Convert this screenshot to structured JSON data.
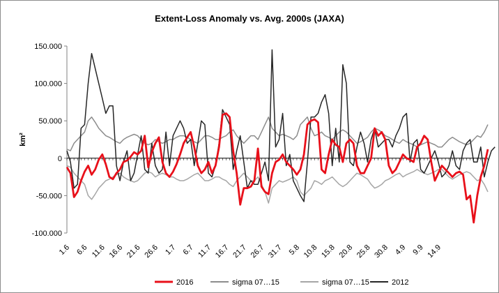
{
  "chart_data": {
    "type": "line",
    "title": "Extent-Loss Anomaly vs. Avg. 2000s (JAXA)",
    "ylabel": "km²",
    "xlabel": "",
    "ylim": [
      -100000,
      150000
    ],
    "y_ticks": [
      150000,
      100000,
      50000,
      0,
      -50000,
      -100000
    ],
    "y_tick_labels": [
      "150.000",
      "100.000",
      "50.000",
      "0",
      "-50.000",
      "-100.000"
    ],
    "x_ticks": [
      {
        "index": 0,
        "label": "1.6"
      },
      {
        "index": 5,
        "label": "6.6"
      },
      {
        "index": 10,
        "label": "11.6"
      },
      {
        "index": 15,
        "label": "16.6"
      },
      {
        "index": 20,
        "label": "21.6"
      },
      {
        "index": 25,
        "label": "26.6"
      },
      {
        "index": 30,
        "label": "1.7"
      },
      {
        "index": 35,
        "label": "6.7"
      },
      {
        "index": 40,
        "label": "11.7"
      },
      {
        "index": 45,
        "label": "16.7"
      },
      {
        "index": 50,
        "label": "21.7"
      },
      {
        "index": 55,
        "label": "26.7"
      },
      {
        "index": 60,
        "label": "31.7"
      },
      {
        "index": 65,
        "label": "5.8"
      },
      {
        "index": 70,
        "label": "10.8"
      },
      {
        "index": 75,
        "label": "15.8"
      },
      {
        "index": 80,
        "label": "20.8"
      },
      {
        "index": 85,
        "label": "25.8"
      },
      {
        "index": 90,
        "label": "30.8"
      },
      {
        "index": 95,
        "label": "4.9"
      },
      {
        "index": 100,
        "label": "9.9"
      },
      {
        "index": 105,
        "label": "14.9"
      }
    ],
    "grid": false,
    "legend_position": "bottom",
    "series": [
      {
        "name": "2016",
        "color": "#e8101a",
        "values": [
          -12000,
          -20000,
          -52000,
          -45000,
          -30000,
          -18000,
          -10000,
          -22000,
          -15000,
          -2000,
          5000,
          -8000,
          -25000,
          -28000,
          -20000,
          -15000,
          -5000,
          -3000,
          2000,
          8000,
          5000,
          10000,
          30000,
          -12000,
          8000,
          20000,
          28000,
          -5000,
          -20000,
          -25000,
          -18000,
          -8000,
          5000,
          20000,
          28000,
          35000,
          15000,
          -10000,
          -20000,
          -15000,
          -5000,
          -20000,
          -10000,
          15000,
          58000,
          60000,
          55000,
          10000,
          -20000,
          -62000,
          -40000,
          -40000,
          -38000,
          -30000,
          13000,
          -38000,
          -45000,
          -48000,
          -20000,
          -5000,
          -2000,
          5000,
          -5000,
          -10000,
          -15000,
          -22000,
          -15000,
          5000,
          45000,
          50000,
          52000,
          48000,
          -15000,
          -20000,
          5000,
          25000,
          18000,
          15000,
          -5000,
          20000,
          25000,
          20000,
          -10000,
          -20000,
          -20000,
          -10000,
          0,
          40000,
          30000,
          35000,
          25000,
          -10000,
          -20000,
          -15000,
          -5000,
          5000,
          0,
          -2000,
          -5000,
          15000,
          20000,
          30000,
          25000,
          -5000,
          -30000,
          -20000,
          -10000,
          -15000,
          -20000,
          -25000,
          -20000,
          -18000,
          -22000,
          -55000,
          -50000,
          -86000,
          -50000,
          -25000,
          -10000,
          12000
        ]
      },
      {
        "name": "sigma 07…15",
        "color": "#8c8c8c",
        "values": [
          12000,
          10000,
          20000,
          25000,
          30000,
          35000,
          50000,
          55000,
          48000,
          40000,
          35000,
          30000,
          28000,
          25000,
          22000,
          20000,
          25000,
          28000,
          30000,
          32000,
          30000,
          25000,
          20000,
          18000,
          20000,
          25000,
          22000,
          20000,
          22000,
          25000,
          25000,
          28000,
          30000,
          30000,
          28000,
          25000,
          22000,
          20000,
          25000,
          30000,
          30000,
          28000,
          25000,
          25000,
          28000,
          30000,
          35000,
          38000,
          30000,
          25000,
          20000,
          25000,
          30000,
          30000,
          25000,
          35000,
          45000,
          55000,
          40000,
          35000,
          30000,
          32000,
          30000,
          28000,
          25000,
          30000,
          45000,
          50000,
          55000,
          40000,
          30000,
          32000,
          35000,
          30000,
          28000,
          25000,
          30000,
          35000,
          38000,
          35000,
          30000,
          25000,
          20000,
          22000,
          25000,
          28000,
          35000,
          40000,
          38000,
          35000,
          30000,
          28000,
          25000,
          22000,
          20000,
          25000,
          22000,
          20000,
          18000,
          15000,
          18000,
          20000,
          22000,
          20000,
          18000,
          15000,
          15000,
          20000,
          25000,
          28000,
          25000,
          22000,
          20000,
          18000,
          20000,
          25000,
          30000,
          28000,
          35000,
          45000
        ]
      },
      {
        "name": "sigma 07…15",
        "color": "#a6a6a6",
        "values": [
          -10000,
          -12000,
          -20000,
          -25000,
          -30000,
          -35000,
          -50000,
          -55000,
          -48000,
          -40000,
          -35000,
          -30000,
          -28000,
          -25000,
          -22000,
          -20000,
          -25000,
          -28000,
          -30000,
          -32000,
          -30000,
          -25000,
          -20000,
          -18000,
          -20000,
          -25000,
          -22000,
          -20000,
          -22000,
          -25000,
          -25000,
          -28000,
          -30000,
          -30000,
          -28000,
          -25000,
          -22000,
          -20000,
          -25000,
          -30000,
          -30000,
          -28000,
          -25000,
          -25000,
          -28000,
          -30000,
          -35000,
          -38000,
          -30000,
          -25000,
          -20000,
          -25000,
          -30000,
          -30000,
          -25000,
          -35000,
          -45000,
          -60000,
          -40000,
          -35000,
          -30000,
          -32000,
          -30000,
          -28000,
          -25000,
          -30000,
          -45000,
          -50000,
          -45000,
          -40000,
          -30000,
          -32000,
          -35000,
          -30000,
          -28000,
          -25000,
          -30000,
          -35000,
          -38000,
          -35000,
          -30000,
          -25000,
          -20000,
          -22000,
          -25000,
          -28000,
          -35000,
          -40000,
          -38000,
          -35000,
          -30000,
          -28000,
          -25000,
          -22000,
          -20000,
          -25000,
          -22000,
          -20000,
          -18000,
          -15000,
          -18000,
          -20000,
          -22000,
          -20000,
          -18000,
          -15000,
          -15000,
          -20000,
          -25000,
          -28000,
          -25000,
          -22000,
          -20000,
          -18000,
          -20000,
          -25000,
          -30000,
          -28000,
          -35000,
          -45000
        ]
      },
      {
        "name": "2012",
        "color": "#262626",
        "values": [
          10000,
          -5000,
          -40000,
          -35000,
          40000,
          45000,
          100000,
          140000,
          120000,
          100000,
          80000,
          60000,
          70000,
          70000,
          -10000,
          -30000,
          -5000,
          10000,
          -30000,
          -20000,
          5000,
          30000,
          -15000,
          -20000,
          20000,
          -10000,
          -20000,
          -15000,
          35000,
          -10000,
          30000,
          40000,
          50000,
          40000,
          20000,
          25000,
          -10000,
          20000,
          50000,
          45000,
          -20000,
          -25000,
          -10000,
          20000,
          65000,
          55000,
          45000,
          -15000,
          10000,
          30000,
          -5000,
          -40000,
          -30000,
          -35000,
          -35000,
          -20000,
          -5000,
          -30000,
          145000,
          15000,
          25000,
          60000,
          -10000,
          5000,
          -30000,
          -40000,
          -50000,
          -58000,
          -5000,
          55000,
          55000,
          60000,
          75000,
          85000,
          60000,
          -10000,
          40000,
          -5000,
          125000,
          100000,
          -5000,
          -10000,
          15000,
          35000,
          20000,
          -5000,
          25000,
          40000,
          15000,
          20000,
          25000,
          25000,
          15000,
          30000,
          40000,
          55000,
          60000,
          -5000,
          20000,
          25000,
          -15000,
          -20000,
          -10000,
          0,
          10000,
          -5000,
          -25000,
          -20000,
          -10000,
          10000,
          -10000,
          -15000,
          10000,
          20000,
          25000,
          -5000,
          -5000,
          15000,
          -25000,
          -5000,
          10000,
          15000
        ]
      }
    ]
  }
}
